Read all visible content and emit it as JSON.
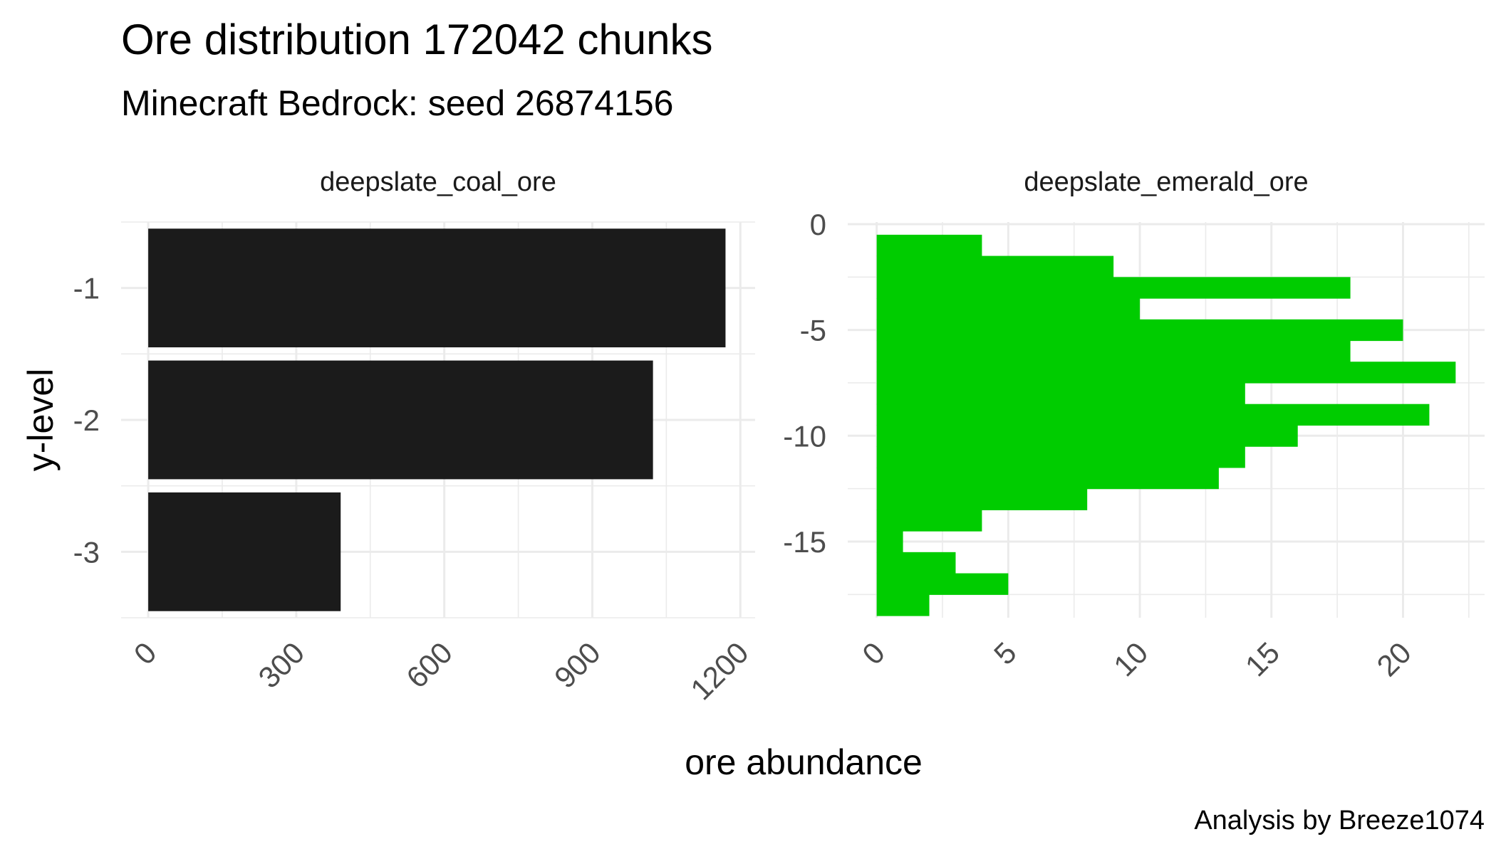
{
  "title": "Ore distribution 172042 chunks",
  "subtitle": "Minecraft Bedrock: seed 26874156",
  "caption": "Analysis by Breeze1074",
  "xlabel": "ore abundance",
  "ylabel": "y-level",
  "chart_data": [
    {
      "type": "bar",
      "orientation": "horizontal",
      "panel_title": "deepslate_coal_ore",
      "color": "#1b1b1b",
      "categories": [
        "-1",
        "-2",
        "-3"
      ],
      "y": [
        -1,
        -2,
        -3
      ],
      "values": [
        1170,
        1023,
        390
      ],
      "xlim": [
        -55,
        1230
      ],
      "x_ticks": [
        0,
        300,
        600,
        900,
        1200
      ],
      "x_tick_labels": [
        "0",
        "300",
        "600",
        "900",
        "1200"
      ],
      "y_ticks": [
        -1,
        -2,
        -3
      ],
      "y_tick_labels": [
        "-1",
        "-2",
        "-3"
      ],
      "grid": true
    },
    {
      "type": "bar",
      "orientation": "horizontal",
      "panel_title": "deepslate_emerald_ore",
      "color": "#00cc00",
      "y": [
        -1,
        -2,
        -3,
        -4,
        -5,
        -6,
        -7,
        -8,
        -9,
        -10,
        -11,
        -12,
        -13,
        -14,
        -15,
        -16,
        -17,
        -18
      ],
      "values": [
        4,
        9,
        18,
        10,
        20,
        18,
        22,
        14,
        21,
        16,
        14,
        13,
        8,
        4,
        1,
        3,
        5,
        2
      ],
      "xlim": [
        -1.1,
        23.1
      ],
      "ylim": [
        -18.6,
        0.1
      ],
      "x_ticks": [
        0,
        5,
        10,
        15,
        20
      ],
      "x_tick_labels": [
        "0",
        "5",
        "10",
        "15",
        "20"
      ],
      "y_ticks": [
        0,
        -5,
        -10,
        -15
      ],
      "y_tick_labels": [
        "0",
        "-5",
        "-10",
        "-15"
      ],
      "grid": true
    }
  ]
}
